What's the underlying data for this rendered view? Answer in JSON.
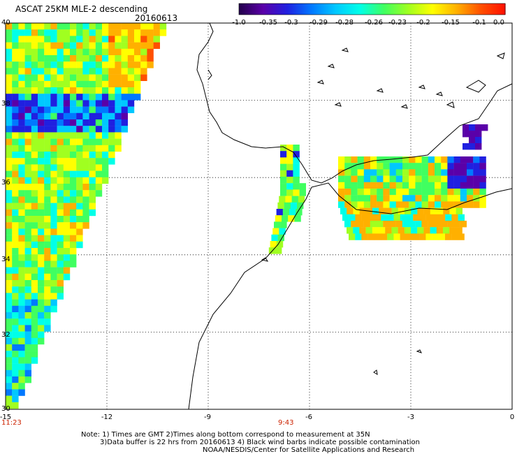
{
  "header": {
    "title": "ASCAT 25KM MLE-2 descending",
    "date": "20160613"
  },
  "colorbar": {
    "tick_labels": [
      "-1.0",
      "-0.35",
      "-0.3",
      "-0.29",
      "-0.28",
      "-0.26",
      "-0.23",
      "-0.2",
      "-0.15",
      "-0.1",
      "0.0"
    ],
    "colors": [
      "#22004a",
      "#5a00a8",
      "#2020e0",
      "#0078ff",
      "#00c8ff",
      "#00ffe8",
      "#40ff60",
      "#a0ff20",
      "#ffff00",
      "#ffb000",
      "#ff5000",
      "#ff1000"
    ]
  },
  "map": {
    "lon_labels": [
      "-15",
      "-12",
      "-9",
      "-6",
      "-3",
      "0"
    ],
    "lat_labels": [
      "40",
      "38",
      "36",
      "34",
      "32",
      "30"
    ],
    "lon_range": [
      -15,
      0
    ],
    "lat_range": [
      30,
      40
    ],
    "grid": true,
    "time_labels": [
      "11:23",
      "9:43"
    ]
  },
  "notes": {
    "line1": "Note: 1) Times are GMT 2)Times along bottom correspond to measurement at 35N",
    "line2": "3)Data buffer is 22 hrs from 20160613 4) Black wind barbs indicate possible contamination",
    "line3": "NOAA/NESDIS/Center for Satellite Applications and Research"
  }
}
